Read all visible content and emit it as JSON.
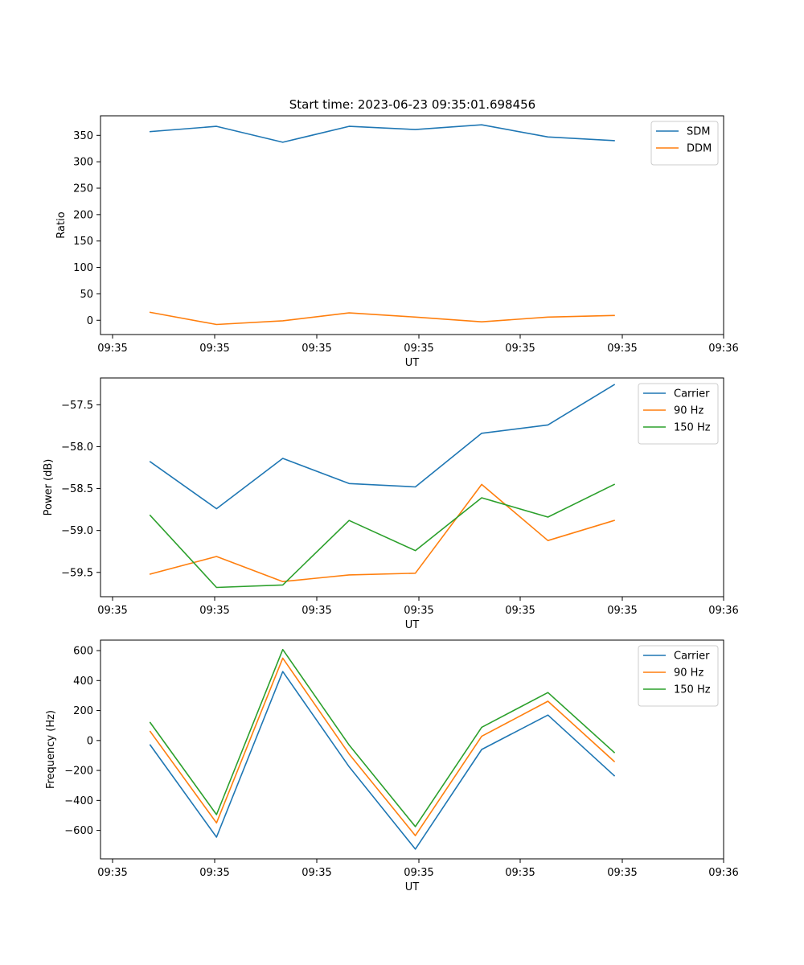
{
  "figure": {
    "title": "Start time: 2023-06-23 09:35:01.698456"
  },
  "colors": {
    "blue": "#1f77b4",
    "orange": "#ff7f0e",
    "green": "#2ca02c"
  },
  "chart_data": [
    {
      "type": "line",
      "title": "Start time: 2023-06-23 09:35:01.698456",
      "xlabel": "UT",
      "ylabel": "Ratio",
      "x_tick_labels": [
        "09:35",
        "09:35",
        "09:35",
        "09:35",
        "09:35",
        "09:35",
        "09:36"
      ],
      "xlim": [
        0,
        9.4
      ],
      "ylim": [
        -27,
        387
      ],
      "y_ticks": [
        0,
        50,
        100,
        150,
        200,
        250,
        300,
        350
      ],
      "x": [
        0.75,
        1.75,
        2.75,
        3.75,
        4.75,
        5.75,
        6.75,
        7.75
      ],
      "legend_position": "upper right",
      "grid": false,
      "series": [
        {
          "name": "SDM",
          "color": "#1f77b4",
          "values": [
            357,
            367,
            337,
            367,
            361,
            370,
            347,
            340
          ]
        },
        {
          "name": "DDM",
          "color": "#ff7f0e",
          "values": [
            15,
            -8,
            -1,
            14,
            6,
            -3,
            6,
            9
          ]
        }
      ]
    },
    {
      "type": "line",
      "title": "",
      "xlabel": "UT",
      "ylabel": "Power (dB)",
      "x_tick_labels": [
        "09:35",
        "09:35",
        "09:35",
        "09:35",
        "09:35",
        "09:35",
        "09:36"
      ],
      "xlim": [
        0,
        9.4
      ],
      "ylim": [
        -59.79,
        -57.18
      ],
      "y_ticks": [
        -59.5,
        -59.0,
        -58.5,
        -58.0,
        -57.5
      ],
      "y_tick_labels": [
        "−59.5",
        "−59.0",
        "−58.5",
        "−58.0",
        "−57.5"
      ],
      "x": [
        0.75,
        1.75,
        2.75,
        3.75,
        4.75,
        5.75,
        6.75,
        7.75
      ],
      "legend_position": "upper right",
      "grid": false,
      "series": [
        {
          "name": "Carrier",
          "color": "#1f77b4",
          "values": [
            -58.18,
            -58.74,
            -58.14,
            -58.44,
            -58.48,
            -57.84,
            -57.74,
            -57.26
          ]
        },
        {
          "name": "90 Hz",
          "color": "#ff7f0e",
          "values": [
            -59.52,
            -59.31,
            -59.61,
            -59.53,
            -59.51,
            -58.45,
            -59.12,
            -58.88
          ]
        },
        {
          "name": "150 Hz",
          "color": "#2ca02c",
          "values": [
            -58.82,
            -59.68,
            -59.65,
            -58.88,
            -59.24,
            -58.61,
            -58.84,
            -58.45
          ]
        }
      ]
    },
    {
      "type": "line",
      "title": "",
      "xlabel": "UT",
      "ylabel": "Frequency (Hz)",
      "x_tick_labels": [
        "09:35",
        "09:35",
        "09:35",
        "09:35",
        "09:35",
        "09:35",
        "09:36"
      ],
      "xlim": [
        0,
        9.4
      ],
      "ylim": [
        -790,
        670
      ],
      "y_ticks": [
        -600,
        -400,
        -200,
        0,
        200,
        400,
        600
      ],
      "y_tick_labels": [
        "−600",
        "−400",
        "−200",
        "0",
        "200",
        "400",
        "600"
      ],
      "x": [
        0.75,
        1.75,
        2.75,
        3.75,
        4.75,
        5.75,
        6.75,
        7.75
      ],
      "legend_position": "upper right",
      "grid": false,
      "series": [
        {
          "name": "Carrier",
          "color": "#1f77b4",
          "values": [
            -30,
            -645,
            460,
            -175,
            -725,
            -60,
            170,
            -235
          ]
        },
        {
          "name": "90 Hz",
          "color": "#ff7f0e",
          "values": [
            60,
            -550,
            550,
            -90,
            -635,
            28,
            262,
            -140
          ]
        },
        {
          "name": "150 Hz",
          "color": "#2ca02c",
          "values": [
            120,
            -495,
            607,
            -30,
            -575,
            88,
            320,
            -80
          ]
        }
      ]
    }
  ]
}
